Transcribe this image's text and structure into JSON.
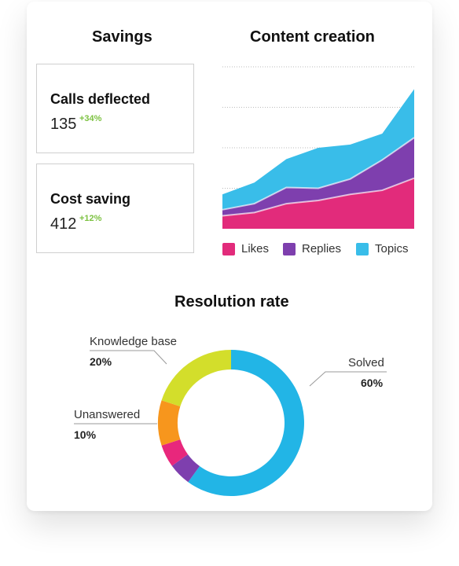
{
  "colors": {
    "likes": "#e22b7b",
    "replies": "#7e3fae",
    "topics": "#39bde9",
    "solved": "#22b5e6",
    "knowledge_base": "#d3de2b",
    "unanswered": "#f7961d",
    "magenta_segment": "#e8277c",
    "purple_segment": "#7e3fae",
    "delta_green": "#7dc242"
  },
  "savings": {
    "title": "Savings",
    "kpis": [
      {
        "label": "Calls deflected",
        "value": "135",
        "delta": "+34%"
      },
      {
        "label": "Cost saving",
        "value": "412",
        "delta": "+12%"
      }
    ]
  },
  "chart_data": [
    {
      "type": "area",
      "title": "Content creation",
      "stacked": true,
      "grid": true,
      "legend": "bottom",
      "x": [
        0,
        1,
        2,
        3,
        4,
        5,
        6
      ],
      "series": [
        {
          "name": "Likes",
          "values": [
            32,
            40,
            62,
            70,
            85,
            95,
            125
          ]
        },
        {
          "name": "Replies",
          "values": [
            15,
            22,
            40,
            30,
            38,
            75,
            100
          ]
        },
        {
          "name": "Topics",
          "values": [
            38,
            52,
            70,
            100,
            85,
            65,
            120
          ]
        }
      ],
      "ylim": [
        0,
        400
      ]
    },
    {
      "type": "pie",
      "title": "Resolution rate",
      "donut": true,
      "slices": [
        {
          "name": "Solved",
          "value": 60,
          "label": "Solved",
          "pct_label": "60%"
        },
        {
          "name": "Knowledge base",
          "value": 20,
          "label": "Knowledge base",
          "pct_label": "20%"
        },
        {
          "name": "Unanswered",
          "value": 10,
          "label": "Unanswered",
          "pct_label": "10%"
        },
        {
          "name": "",
          "value": 5
        },
        {
          "name": "",
          "value": 5
        }
      ]
    }
  ]
}
